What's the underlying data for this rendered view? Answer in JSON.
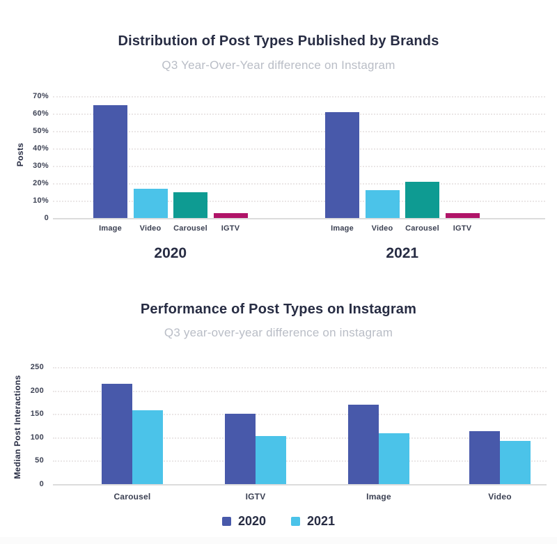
{
  "colors": {
    "indigo": "#4859aa",
    "light_blue": "#4bc3e9",
    "teal": "#0e9b92",
    "magenta": "#b01468",
    "title_text": "#272c43",
    "subtitle_text": "#b9bdc6",
    "tick_text": "#3d4254",
    "gridline": "#eae6e6",
    "baseline": "#dcdcdc"
  },
  "chart_data": [
    {
      "type": "bar",
      "title": "Distribution of Post Types Published by Brands",
      "subtitle": "Q3 Year-Over-Year difference on Instagram",
      "ylabel": "Posts",
      "unit": "%",
      "ylim": [
        0,
        70
      ],
      "yticks": [
        "70%",
        "60%",
        "50%",
        "40%",
        "30%",
        "20%",
        "10%",
        "0"
      ],
      "grid": "dotted-horizontal",
      "legend_position": "none",
      "groups": [
        {
          "label": "2020",
          "bars": [
            {
              "category": "Image",
              "value": 65,
              "color": "#4859aa"
            },
            {
              "category": "Video",
              "value": 17,
              "color": "#4bc3e9"
            },
            {
              "category": "Carousel",
              "value": 15,
              "color": "#0e9b92"
            },
            {
              "category": "IGTV",
              "value": 3,
              "color": "#b01468"
            }
          ]
        },
        {
          "label": "2021",
          "bars": [
            {
              "category": "Image",
              "value": 61,
              "color": "#4859aa"
            },
            {
              "category": "Video",
              "value": 16,
              "color": "#4bc3e9"
            },
            {
              "category": "Carousel",
              "value": 21,
              "color": "#0e9b92"
            },
            {
              "category": "IGTV",
              "value": 3,
              "color": "#b01468"
            }
          ]
        }
      ]
    },
    {
      "type": "grouped-bar",
      "title": "Performance of Post Types on Instagram",
      "subtitle": "Q3 year-over-year difference on instagram",
      "ylabel": "Median Post Interactions",
      "ylim": [
        0,
        250
      ],
      "yticks": [
        "250",
        "200",
        "150",
        "100",
        "50",
        "0"
      ],
      "grid": "dotted-horizontal",
      "categories": [
        "Carousel",
        "IGTV",
        "Image",
        "Video"
      ],
      "series": [
        {
          "name": "2020",
          "color": "#4859aa",
          "values": [
            215,
            150,
            170,
            113
          ]
        },
        {
          "name": "2021",
          "color": "#4bc3e9",
          "values": [
            158,
            103,
            108,
            92
          ]
        }
      ],
      "legend": [
        {
          "label": "2020",
          "color": "#4859aa"
        },
        {
          "label": "2021",
          "color": "#4bc3e9"
        }
      ],
      "legend_position": "bottom-center"
    }
  ]
}
